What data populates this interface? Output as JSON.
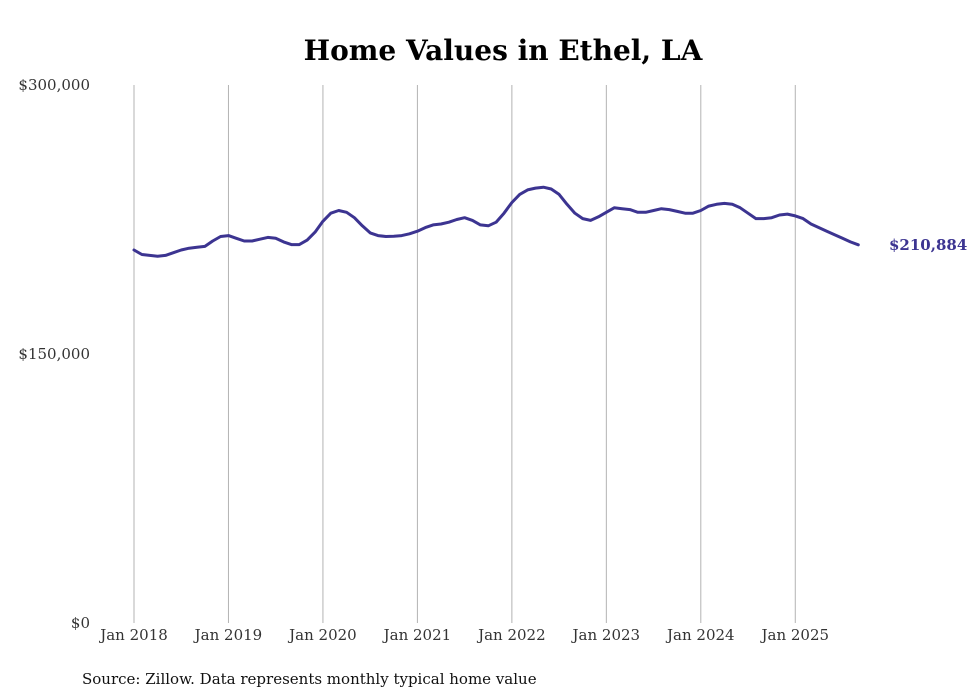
{
  "chart_data": {
    "type": "line",
    "title": "Home Values in Ethel, LA",
    "xlabel": "",
    "ylabel": "",
    "source": "Source: Zillow. Data represents monthly typical home value",
    "y_ticks": [
      {
        "value": 300000,
        "label": "$300,000"
      },
      {
        "value": 150000,
        "label": "$150,000"
      },
      {
        "value": 0,
        "label": "$0"
      }
    ],
    "ylim": [
      0,
      300000
    ],
    "x_ticks": [
      {
        "index": 0,
        "label": "Jan 2018"
      },
      {
        "index": 12,
        "label": "Jan 2019"
      },
      {
        "index": 24,
        "label": "Jan 2020"
      },
      {
        "index": 36,
        "label": "Jan 2021"
      },
      {
        "index": 48,
        "label": "Jan 2022"
      },
      {
        "index": 60,
        "label": "Jan 2023"
      },
      {
        "index": 72,
        "label": "Jan 2024"
      },
      {
        "index": 84,
        "label": "Jan 2025"
      }
    ],
    "xlim": [
      0,
      94
    ],
    "grid": "vertical",
    "line_color": "#3c3491",
    "series": [
      {
        "name": "Typical home value",
        "start": "Jan 2018",
        "frequency": "monthly",
        "values": [
          208000,
          205500,
          205000,
          204500,
          205000,
          206500,
          208000,
          209000,
          209500,
          210000,
          213000,
          215500,
          216000,
          214500,
          213000,
          213000,
          214000,
          215000,
          214500,
          212500,
          211000,
          211000,
          213500,
          218000,
          224000,
          228500,
          230000,
          229000,
          226000,
          221500,
          217500,
          216000,
          215500,
          215700,
          216000,
          217000,
          218500,
          220500,
          222000,
          222500,
          223500,
          225000,
          226000,
          224500,
          222000,
          221500,
          223500,
          228500,
          234500,
          239000,
          241500,
          242500,
          243000,
          242000,
          239000,
          233500,
          228500,
          225500,
          224500,
          226500,
          229000,
          231500,
          231000,
          230500,
          229000,
          229000,
          230000,
          231000,
          230500,
          229500,
          228500,
          228500,
          230000,
          232500,
          233500,
          234000,
          233500,
          231500,
          228500,
          225500,
          225500,
          226000,
          227500,
          228000,
          227000,
          225500,
          222500,
          220500,
          218500,
          216500,
          214500,
          212500,
          210884
        ]
      }
    ],
    "end_label": "$210,884"
  }
}
